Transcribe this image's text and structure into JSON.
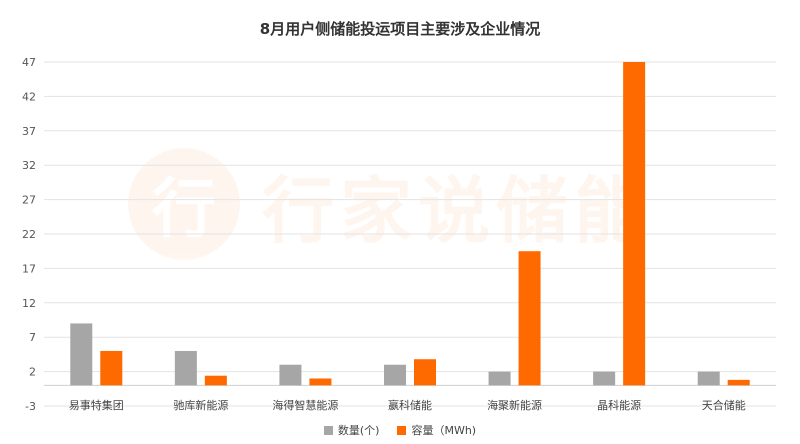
{
  "chart_data": {
    "type": "bar",
    "title": "8月用户侧储能投运项目主要涉及企业情况",
    "categories": [
      "易事特集团",
      "驰库新能源",
      "海得智慧能源",
      "嬴科储能",
      "海聚新能源",
      "晶科能源",
      "天合储能"
    ],
    "series": [
      {
        "name": "数量(个)",
        "color": "#a6a6a6",
        "values": [
          9,
          5,
          3,
          3,
          2,
          2,
          2
        ]
      },
      {
        "name": "容量（MWh)",
        "color": "#ff6a00",
        "values": [
          5,
          1.4,
          1,
          3.8,
          19.5,
          47,
          0.8
        ]
      }
    ],
    "yticks": [
      -3,
      2,
      7,
      12,
      17,
      22,
      27,
      32,
      37,
      42,
      47
    ],
    "ylim": [
      -3,
      47
    ],
    "grid": true,
    "legend_position": "bottom-center"
  },
  "watermark": {
    "glyph": "行",
    "text": "行家说储能"
  }
}
